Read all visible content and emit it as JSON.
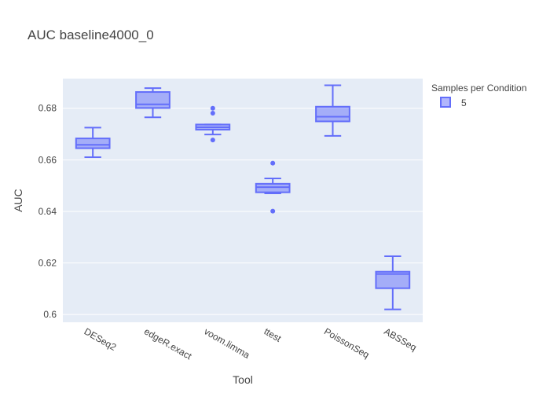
{
  "chart_data": {
    "type": "box",
    "title": "AUC baseline4000_0",
    "xlabel": "Tool",
    "ylabel": "AUC",
    "categories": [
      "DESeq2",
      "edgeR.exact",
      "voom.limma",
      "ttest",
      "PoissonSeq",
      "ABSSeq"
    ],
    "ylim": [
      0.597,
      0.6915
    ],
    "yticks": [
      0.6,
      0.62,
      0.64,
      0.66,
      0.68
    ],
    "ytick_labels": [
      "0.6",
      "0.62",
      "0.64",
      "0.66",
      "0.68"
    ],
    "grid": true,
    "legend": {
      "title": "Samples per Condition",
      "placement": "top-right",
      "entries": [
        "5"
      ]
    },
    "series": [
      {
        "name": "5",
        "color": "#636efa",
        "fill": "rgba(99,110,250,0.5)",
        "boxes": [
          {
            "category": "DESeq2",
            "min": 0.661,
            "q1": 0.6645,
            "median": 0.6658,
            "q3": 0.6683,
            "max": 0.6725,
            "outliers": []
          },
          {
            "category": "edgeR.exact",
            "min": 0.6765,
            "q1": 0.6801,
            "median": 0.6815,
            "q3": 0.6863,
            "max": 0.6878,
            "outliers": []
          },
          {
            "category": "voom.limma",
            "min": 0.6698,
            "q1": 0.6717,
            "median": 0.6726,
            "q3": 0.6737,
            "max": 0.6737,
            "outliers": [
              0.68,
              0.6781,
              0.6677
            ]
          },
          {
            "category": "ttest",
            "min": 0.647,
            "q1": 0.6474,
            "median": 0.6494,
            "q3": 0.6507,
            "max": 0.6528,
            "outliers": [
              0.6587,
              0.6401
            ]
          },
          {
            "category": "PoissonSeq",
            "min": 0.6693,
            "q1": 0.6749,
            "median": 0.6767,
            "q3": 0.6806,
            "max": 0.6889,
            "outliers": []
          },
          {
            "category": "ABSSeq",
            "min": 0.602,
            "q1": 0.6102,
            "median": 0.6157,
            "q3": 0.6166,
            "max": 0.6226,
            "outliers": []
          }
        ]
      }
    ]
  }
}
